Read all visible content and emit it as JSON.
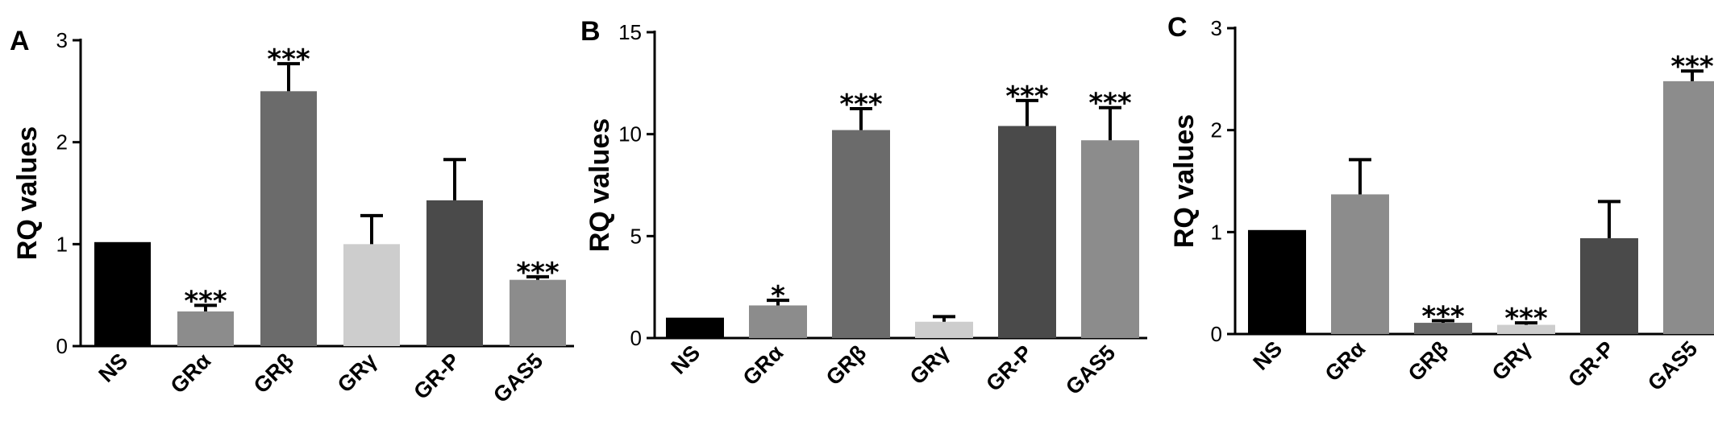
{
  "chart_data": [
    {
      "type": "bar",
      "panel": "A",
      "ylabel": "RQ values",
      "ylim": [
        0,
        3
      ],
      "yticks": [
        "0",
        "1",
        "2",
        "3"
      ],
      "categories": [
        "NS",
        "GRα",
        "GRβ",
        "GRγ",
        "GR-P",
        "GAS5"
      ],
      "values": [
        1.02,
        0.34,
        2.5,
        1.0,
        1.43,
        0.65
      ],
      "errors": [
        0,
        0.06,
        0.27,
        0.28,
        0.4,
        0.03
      ],
      "significance": [
        "",
        "***",
        "***",
        "",
        "",
        "***"
      ],
      "colors": [
        "#000000",
        "#8c8c8c",
        "#6b6b6b",
        "#cdcdcd",
        "#4a4a4a",
        "#8c8c8c"
      ]
    },
    {
      "type": "bar",
      "panel": "B",
      "ylabel": "RQ values",
      "ylim": [
        0,
        15
      ],
      "yticks": [
        "0",
        "5",
        "10",
        "15"
      ],
      "categories": [
        "NS",
        "GRα",
        "GRβ",
        "GRγ",
        "GR-P",
        "GAS5"
      ],
      "values": [
        1.0,
        1.6,
        10.2,
        0.8,
        10.4,
        9.7
      ],
      "errors": [
        0,
        0.25,
        1.05,
        0.25,
        1.25,
        1.6
      ],
      "significance": [
        "",
        "*",
        "***",
        "",
        "***",
        "***"
      ],
      "colors": [
        "#000000",
        "#8c8c8c",
        "#6b6b6b",
        "#cdcdcd",
        "#4a4a4a",
        "#8c8c8c"
      ]
    },
    {
      "type": "bar",
      "panel": "C",
      "ylabel": "RQ values",
      "ylim": [
        0,
        3
      ],
      "yticks": [
        "0",
        "1",
        "2",
        "3"
      ],
      "categories": [
        "NS",
        "GRα",
        "GRβ",
        "GRγ",
        "GR-P",
        "GAS5"
      ],
      "values": [
        1.02,
        1.37,
        0.11,
        0.09,
        0.94,
        2.48
      ],
      "errors": [
        0,
        0.34,
        0.02,
        0.02,
        0.36,
        0.1
      ],
      "significance": [
        "",
        "",
        "***",
        "***",
        "",
        "***"
      ],
      "colors": [
        "#000000",
        "#8c8c8c",
        "#6b6b6b",
        "#cdcdcd",
        "#4a4a4a",
        "#8c8c8c"
      ]
    }
  ]
}
